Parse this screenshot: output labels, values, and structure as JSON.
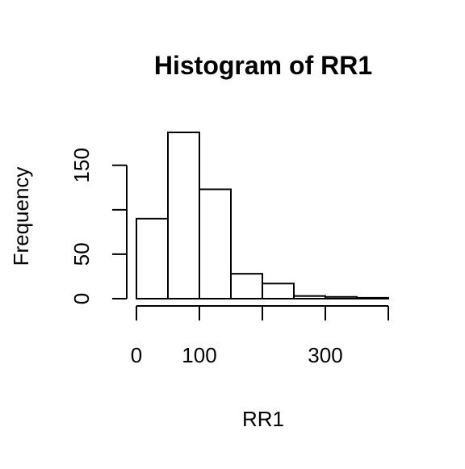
{
  "chart_data": {
    "type": "bar",
    "subtype": "histogram",
    "title": "Histogram of RR1",
    "xlabel": "RR1",
    "ylabel": "Frequency",
    "bins": [
      {
        "start": 0,
        "end": 50,
        "count": 90
      },
      {
        "start": 50,
        "end": 100,
        "count": 187
      },
      {
        "start": 100,
        "end": 150,
        "count": 123
      },
      {
        "start": 150,
        "end": 200,
        "count": 28
      },
      {
        "start": 200,
        "end": 250,
        "count": 17
      },
      {
        "start": 250,
        "end": 300,
        "count": 3
      },
      {
        "start": 300,
        "end": 350,
        "count": 2
      },
      {
        "start": 350,
        "end": 400,
        "count": 1
      }
    ],
    "x_ticks": [
      0,
      100,
      200,
      300,
      400
    ],
    "x_tick_labels": [
      "0",
      "100",
      "",
      "300",
      ""
    ],
    "y_ticks": [
      0,
      50,
      100,
      150
    ],
    "y_tick_labels": [
      "0",
      "50",
      "",
      "150"
    ],
    "xlim": [
      0,
      400
    ],
    "ylim": [
      0,
      187
    ],
    "grid": false,
    "bar_fill": "#ffffff",
    "bar_stroke": "#000000"
  }
}
